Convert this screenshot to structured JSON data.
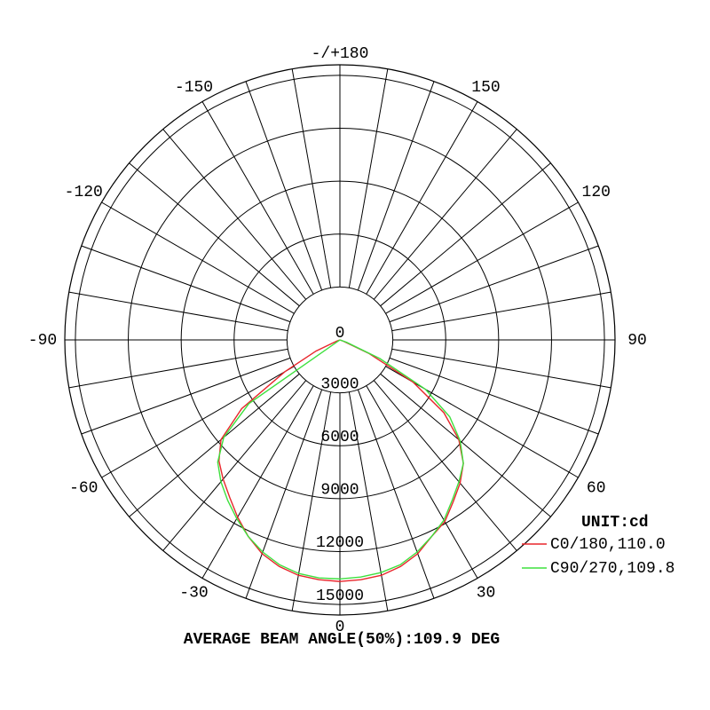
{
  "chart_data": {
    "type": "polar",
    "footer": "AVERAGE BEAM ANGLE(50%):109.9 DEG",
    "legend_title": "UNIT:cd",
    "x": [
      -90,
      -85,
      -80,
      -75,
      -70,
      -65,
      -60,
      -55,
      -50,
      -45,
      -40,
      -35,
      -30,
      -25,
      -20,
      -15,
      -10,
      -5,
      0,
      5,
      10,
      15,
      20,
      25,
      30,
      35,
      40,
      45,
      50,
      55,
      60,
      65,
      70,
      75,
      80,
      85,
      90
    ],
    "series": [
      {
        "name": "C0/180,110.0",
        "color": "#e8262b",
        "values": [
          0,
          0,
          0,
          0,
          200,
          1500,
          3600,
          6800,
          8800,
          9700,
          10300,
          10900,
          11600,
          12300,
          12900,
          13300,
          13550,
          13650,
          13700,
          13650,
          13550,
          13300,
          12900,
          12300,
          11900,
          11200,
          10600,
          9900,
          8800,
          7200,
          4800,
          1800,
          200,
          0,
          0,
          0,
          0
        ]
      },
      {
        "name": "C90/270,109.8",
        "color": "#3ee03e",
        "values": [
          0,
          0,
          0,
          0,
          0,
          0,
          0,
          6300,
          8600,
          9800,
          10500,
          11100,
          11700,
          12300,
          12800,
          13200,
          13450,
          13550,
          13550,
          13500,
          13400,
          13200,
          12800,
          12300,
          11800,
          11100,
          10500,
          9900,
          8900,
          7600,
          5600,
          2500,
          400,
          0,
          0,
          0,
          0
        ]
      }
    ],
    "rlim": [
      0,
      15600
    ],
    "rticks": [
      0,
      3000,
      6000,
      9000,
      12000,
      15000
    ],
    "thetaticks": [
      0,
      30,
      -30,
      60,
      -60,
      90,
      -90,
      120,
      -120,
      150,
      -150,
      {
        "value": 180,
        "label": "-/+180"
      }
    ]
  }
}
